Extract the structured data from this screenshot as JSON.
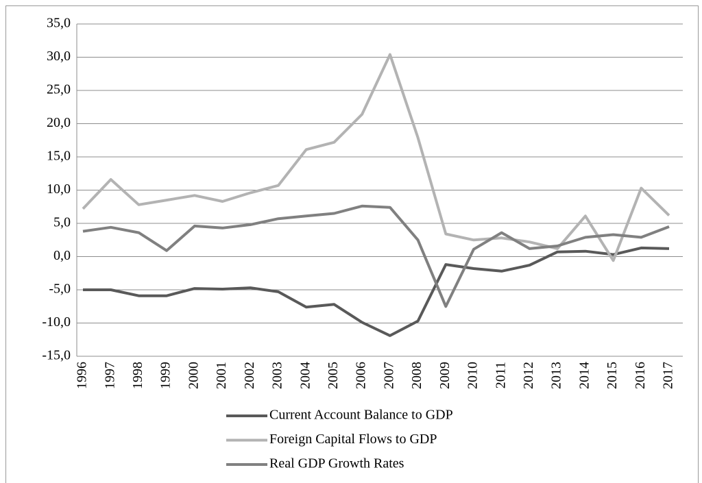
{
  "chart_data": {
    "type": "line",
    "categories": [
      "1996",
      "1997",
      "1998",
      "1999",
      "2000",
      "2001",
      "2002",
      "2003",
      "2004",
      "2005",
      "2006",
      "2007",
      "2008",
      "2009",
      "2010",
      "2011",
      "2012",
      "2013",
      "2014",
      "2015",
      "2016",
      "2017"
    ],
    "series": [
      {
        "name": "Current Account Balance to GDP",
        "color": "#595959",
        "values": [
          -5.0,
          -5.0,
          -5.9,
          -5.9,
          -4.8,
          -4.9,
          -4.7,
          -5.3,
          -7.6,
          -7.2,
          -9.9,
          -11.9,
          -9.7,
          -1.2,
          -1.8,
          -2.2,
          -1.3,
          0.7,
          0.8,
          0.3,
          1.3,
          1.2
        ]
      },
      {
        "name": "Foreign Capital Flows to GDP",
        "color": "#b3b3b3",
        "values": [
          7.2,
          11.6,
          7.8,
          8.5,
          9.2,
          8.3,
          9.6,
          10.7,
          16.1,
          17.2,
          21.4,
          30.4,
          17.9,
          3.4,
          2.5,
          2.8,
          2.2,
          1.2,
          6.1,
          -0.6,
          10.3,
          6.2
        ]
      },
      {
        "name": "Real GDP Growth Rates",
        "color": "#808080",
        "values": [
          3.8,
          4.4,
          3.6,
          0.9,
          4.6,
          4.3,
          4.8,
          5.7,
          6.1,
          6.5,
          7.6,
          7.4,
          2.5,
          -7.5,
          1.1,
          3.6,
          1.2,
          1.6,
          2.9,
          3.3,
          2.9,
          4.5
        ]
      }
    ],
    "ylim": [
      -15,
      35
    ],
    "yticks": [
      {
        "value": -15,
        "label": "-15,0"
      },
      {
        "value": -10,
        "label": "-10,0"
      },
      {
        "value": -5,
        "label": "-5,0"
      },
      {
        "value": 0,
        "label": "0,0"
      },
      {
        "value": 5,
        "label": "5,0"
      },
      {
        "value": 10,
        "label": "10,0"
      },
      {
        "value": 15,
        "label": "15,0"
      },
      {
        "value": 20,
        "label": "20,0"
      },
      {
        "value": 25,
        "label": "25,0"
      },
      {
        "value": 30,
        "label": "30,0"
      },
      {
        "value": 35,
        "label": "35,0"
      }
    ],
    "grid": true,
    "legend": "bottom"
  }
}
